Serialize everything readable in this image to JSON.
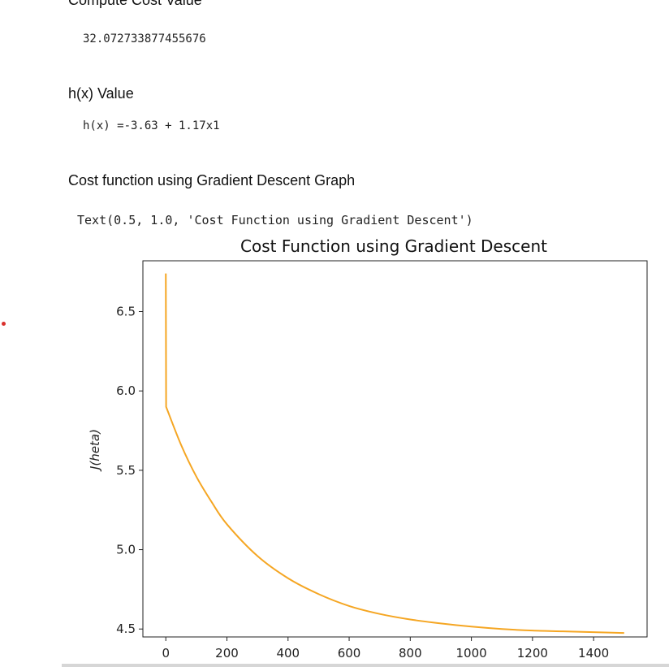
{
  "cells": {
    "compute_cost_heading": "Compute Cost Value",
    "compute_cost_output": "32.072733877455676",
    "hx_heading": "h(x) Value",
    "hx_output": "h(x) =-3.63 + 1.17x1",
    "graph_heading": "Cost function using Gradient Descent Graph",
    "graph_output": "Text(0.5, 1.0, 'Cost Function using Gradient Descent')"
  },
  "chart_data": {
    "type": "line",
    "title": "Cost Function using Gradient Descent",
    "xlabel": "",
    "ylabel": "J(heta)",
    "xlim": [
      -75,
      1575
    ],
    "ylim": [
      4.45,
      6.82
    ],
    "xticks": [
      0,
      200,
      400,
      600,
      800,
      1000,
      1200,
      1400
    ],
    "xtick_labels": [
      "0",
      "200",
      "400",
      "600",
      "800",
      "1000",
      "1200",
      "1400"
    ],
    "yticks": [
      4.5,
      5.0,
      5.5,
      6.0,
      6.5
    ],
    "ytick_labels": [
      "4.5",
      "5.0",
      "5.5",
      "6.0",
      "6.5"
    ],
    "grid": false,
    "color": "#f5a623",
    "series": [
      {
        "x": [
          0,
          1,
          50,
          100,
          150,
          200,
          300,
          400,
          500,
          600,
          700,
          800,
          900,
          1000,
          1100,
          1200,
          1300,
          1400,
          1500
        ],
        "y": [
          6.74,
          5.9,
          5.66,
          5.46,
          5.3,
          5.16,
          4.96,
          4.82,
          4.72,
          4.645,
          4.595,
          4.56,
          4.535,
          4.515,
          4.5,
          4.49,
          4.485,
          4.48,
          4.475
        ]
      }
    ]
  }
}
